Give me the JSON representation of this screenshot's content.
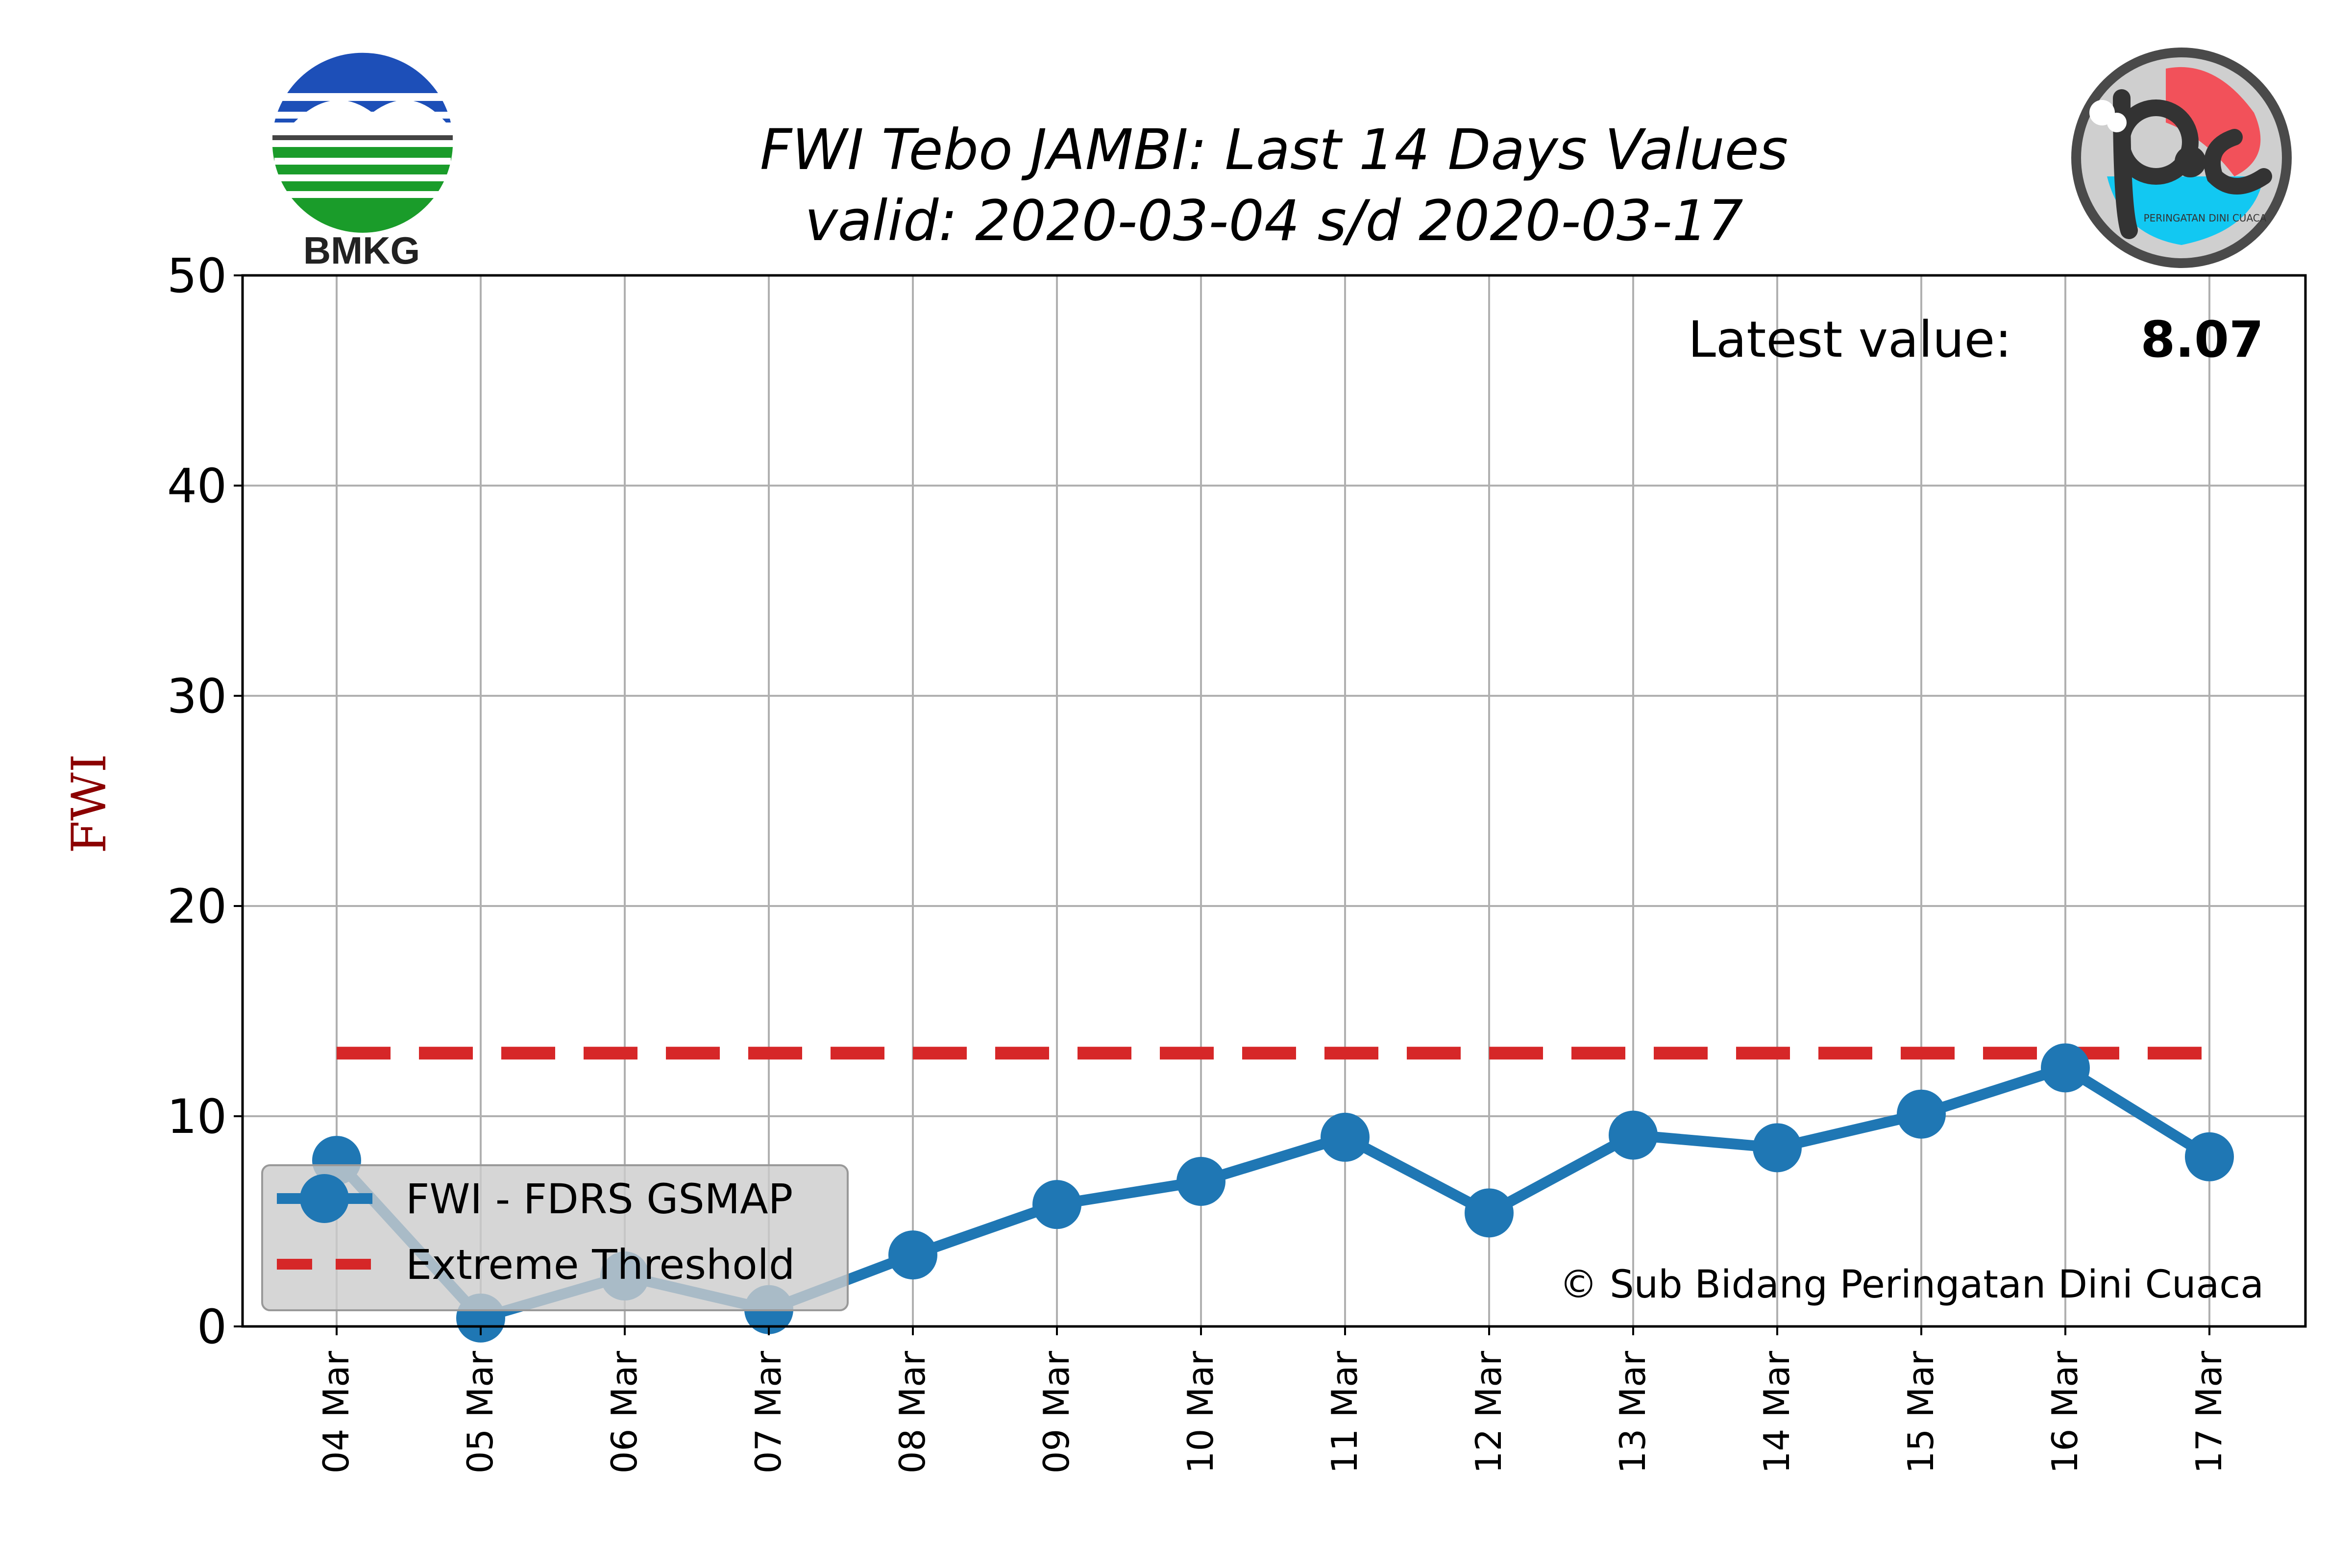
{
  "chart_data": {
    "type": "line",
    "title": "FWI Tebo JAMBI: Last 14 Days Values",
    "subtitle": "valid: 2020-03-04 s/d 2020-03-17",
    "xlabel": "",
    "ylabel": "FWI",
    "ylim": [
      0,
      50
    ],
    "yticks": [
      "0",
      "10",
      "20",
      "30",
      "40",
      "50"
    ],
    "grid": true,
    "categories": [
      "04 Mar",
      "05 Mar",
      "06 Mar",
      "07 Mar",
      "08 Mar",
      "09 Mar",
      "10 Mar",
      "11 Mar",
      "12 Mar",
      "13 Mar",
      "14 Mar",
      "15 Mar",
      "16 Mar",
      "17 Mar"
    ],
    "series": [
      {
        "name": "FWI - FDRS GSMAP",
        "color": "#1f77b4",
        "style": "solid-markers",
        "values": [
          7.9,
          0.4,
          2.4,
          0.8,
          3.4,
          5.8,
          6.9,
          9.0,
          5.4,
          9.1,
          8.5,
          10.1,
          12.3,
          8.07
        ]
      },
      {
        "name": "Extreme Threshold",
        "color": "#d62728",
        "style": "dashed",
        "values": [
          13,
          13,
          13,
          13,
          13,
          13,
          13,
          13,
          13,
          13,
          13,
          13,
          13,
          13
        ]
      }
    ],
    "legend_position": "lower-left",
    "latest_label": "Latest value:",
    "latest_value": "8.07",
    "credit": "© Sub Bidang Peringatan Dini Cuaca"
  },
  "logos": {
    "left_label": "BMKG",
    "right_caption": "PERINGATAN DINI CUACA"
  }
}
